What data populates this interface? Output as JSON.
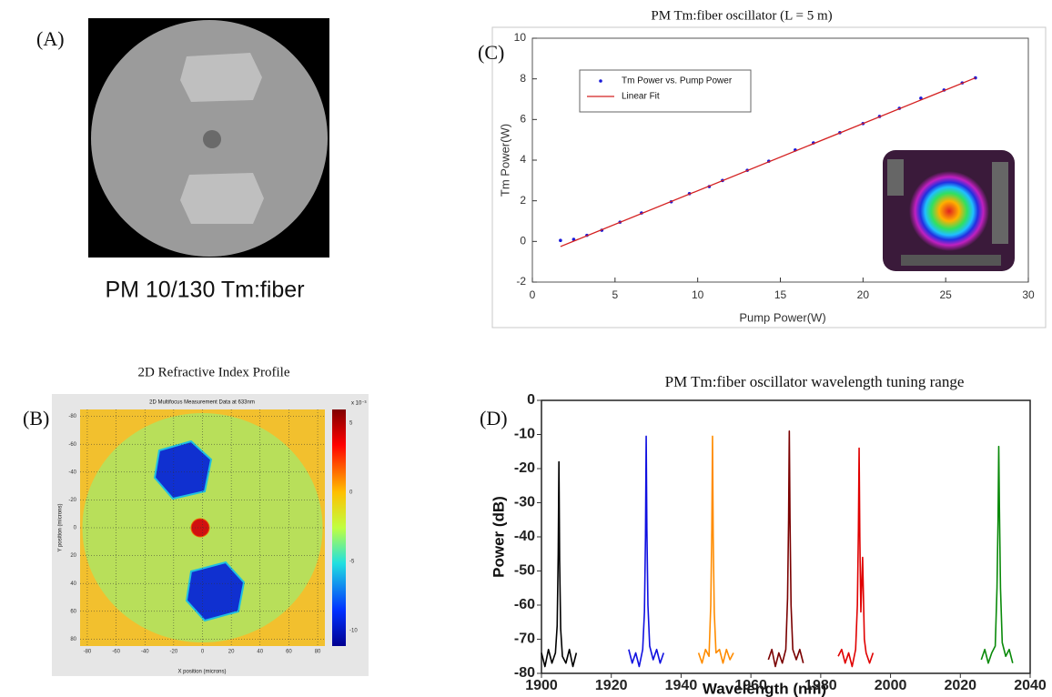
{
  "fiber_image": {
    "label": "(A)",
    "caption": "PM 10/130 Tm:fiber"
  },
  "fiber_map": {
    "label": "(B)",
    "title": "2D Refractive Index Profile",
    "plot_title": "2D Multifocus Measurement Data at 633nm",
    "x_label": "X position (microns)",
    "y_label": "Y position (microns)",
    "x_ticks": [
      -80,
      -60,
      -40,
      -20,
      0,
      20,
      40,
      60,
      80
    ],
    "y_ticks": [
      -80,
      -60,
      -40,
      -20,
      0,
      20,
      40,
      60,
      80
    ],
    "colorbar_ticks": [
      5,
      0,
      -5,
      -10
    ],
    "colorbar_scale": "x 10⁻³"
  },
  "chart_data": [
    {
      "type": "scatter",
      "panel_label": "(C)",
      "title": "PM Tm:fiber oscillator (L = 5 m)",
      "x_label": "Pump Power(W)",
      "y_label": "Tm Power(W)",
      "xlim": [
        0,
        30
      ],
      "xticks": [
        0,
        5,
        10,
        15,
        20,
        25,
        30
      ],
      "ylim": [
        -2,
        10
      ],
      "yticks": [
        -2,
        0,
        2,
        4,
        6,
        8,
        10
      ],
      "grid": false,
      "legend": "upper left",
      "series": [
        {
          "name": "Tm Power vs. Pump Power",
          "color": "#1a1ad8",
          "style": "markers",
          "x": [
            1.7,
            2.5,
            3.3,
            4.2,
            5.3,
            6.6,
            8.4,
            9.5,
            10.7,
            11.5,
            13,
            14.3,
            15.9,
            17,
            18.6,
            20,
            21,
            22.2,
            23.5,
            24.9,
            26,
            26.8
          ],
          "values": [
            0.05,
            0.1,
            0.3,
            0.55,
            0.95,
            1.4,
            1.95,
            2.35,
            2.7,
            3.0,
            3.5,
            3.95,
            4.5,
            4.85,
            5.35,
            5.8,
            6.15,
            6.55,
            7.05,
            7.45,
            7.8,
            8.05
          ]
        },
        {
          "name": "Linear Fit",
          "color": "#d42020",
          "style": "line",
          "x": [
            1.7,
            26.8
          ],
          "values": [
            -0.25,
            8.05
          ]
        }
      ]
    },
    {
      "type": "line",
      "panel_label": "(D)",
      "title": "PM Tm:fiber oscillator wavelength tuning range",
      "x_label": "Wavelength (nm)",
      "y_label": "Power (dB)",
      "xlim": [
        1900,
        2040
      ],
      "xticks": [
        1900,
        1920,
        1940,
        1960,
        1980,
        2000,
        2020,
        2040
      ],
      "ylim": [
        -80,
        0
      ],
      "yticks": [
        0,
        -10,
        -20,
        -30,
        -40,
        -50,
        -60,
        -70,
        -80
      ],
      "grid": false,
      "series": [
        {
          "color": "#000000",
          "x": [
            1900,
            1901,
            1902,
            1903,
            1904,
            1904.5,
            1904.8,
            1905,
            1905.2,
            1905.5,
            1906,
            1907,
            1908,
            1909,
            1910
          ],
          "values": [
            -74,
            -78,
            -73,
            -77,
            -74,
            -66,
            -45,
            -18,
            -47,
            -67,
            -75,
            -77,
            -73,
            -78,
            -74
          ]
        },
        {
          "color": "#1010e0",
          "x": [
            1925,
            1926,
            1927,
            1928,
            1929,
            1929.5,
            1929.8,
            1930,
            1930.2,
            1930.5,
            1931,
            1932,
            1933,
            1934,
            1935
          ],
          "values": [
            -73,
            -77,
            -74,
            -78,
            -73,
            -62,
            -40,
            -10.5,
            -38,
            -60,
            -72,
            -76,
            -73,
            -77,
            -74
          ]
        },
        {
          "color": "#ff8c00",
          "x": [
            1945,
            1946,
            1947,
            1948,
            1948.5,
            1948.8,
            1949,
            1949.2,
            1949.5,
            1950,
            1951,
            1952,
            1953,
            1954,
            1955
          ],
          "values": [
            -74,
            -77,
            -73,
            -75,
            -60,
            -38,
            -10.5,
            -40,
            -62,
            -74,
            -73,
            -77,
            -73,
            -76,
            -74
          ]
        },
        {
          "color": "#7a0000",
          "x": [
            1965,
            1966,
            1967,
            1968,
            1969,
            1970,
            1970.5,
            1970.8,
            1971,
            1971.2,
            1971.5,
            1972,
            1973,
            1974,
            1975
          ],
          "values": [
            -76,
            -73,
            -78,
            -74,
            -77,
            -73,
            -58,
            -35,
            -9,
            -35,
            -60,
            -73,
            -76,
            -73,
            -77
          ]
        },
        {
          "color": "#e00000",
          "x": [
            1985,
            1986,
            1987,
            1988,
            1989,
            1990,
            1990.5,
            1990.8,
            1991,
            1991.2,
            1991.5,
            1992,
            1992.5,
            1993,
            1994,
            1995
          ],
          "values": [
            -75,
            -73,
            -77,
            -74,
            -78,
            -73,
            -60,
            -38,
            -14,
            -40,
            -62,
            -46,
            -70,
            -74,
            -77,
            -74
          ]
        },
        {
          "color": "#0a8a0a",
          "x": [
            2026,
            2027,
            2028,
            2029,
            2030,
            2030.5,
            2030.8,
            2031,
            2031.2,
            2031.5,
            2032,
            2033,
            2034,
            2035
          ],
          "values": [
            -76,
            -73,
            -77,
            -74,
            -72,
            -55,
            -35,
            -13.5,
            -32,
            -55,
            -71,
            -75,
            -73,
            -77
          ]
        }
      ]
    }
  ]
}
